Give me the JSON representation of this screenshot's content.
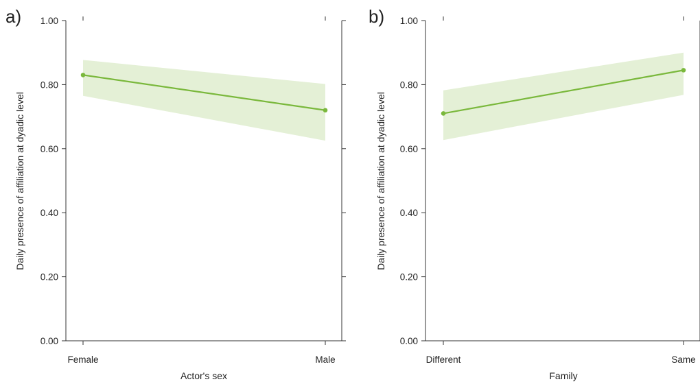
{
  "chart_data": [
    {
      "panel_label": "a)",
      "type": "line",
      "xlabel": "Actor's sex",
      "ylabel": "Daily presence of affiliation at dyadic level",
      "categories": [
        "Female",
        "Male"
      ],
      "values": [
        0.83,
        0.72
      ],
      "ci_lower": [
        0.765,
        0.625
      ],
      "ci_upper": [
        0.877,
        0.802
      ],
      "ylim": [
        0,
        1
      ],
      "yticks": [
        "0.00",
        "0.20",
        "0.40",
        "0.60",
        "0.80",
        "1.00"
      ],
      "grid": false,
      "colors": {
        "line": "#7ab83c",
        "band": "#e4f0d6"
      }
    },
    {
      "panel_label": "b)",
      "type": "line",
      "xlabel": "Family",
      "ylabel": "Daily presence of affiliation at dyadic level",
      "categories": [
        "Different",
        "Same"
      ],
      "values": [
        0.71,
        0.845
      ],
      "ci_lower": [
        0.627,
        0.768
      ],
      "ci_upper": [
        0.782,
        0.9
      ],
      "ylim": [
        0,
        1
      ],
      "yticks": [
        "0.00",
        "0.20",
        "0.40",
        "0.60",
        "0.80",
        "1.00"
      ],
      "grid": false,
      "colors": {
        "line": "#7ab83c",
        "band": "#e4f0d6"
      }
    }
  ]
}
